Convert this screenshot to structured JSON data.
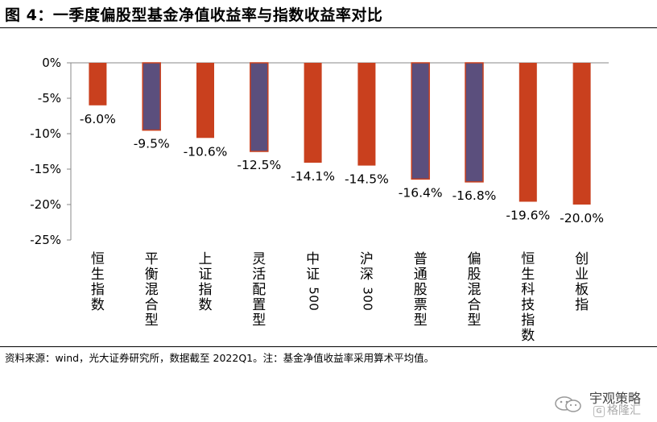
{
  "title": "图 4：一季度偏股型基金净值收益率与指数收益率对比",
  "note": "资料来源：wind，光大证券研究所，数据截至 2022Q1。注：基金净值收益率采用算术平均值。",
  "watermark": {
    "name": "宇观策略",
    "sub": "格隆汇"
  },
  "colors": {
    "index": "#C9401E",
    "fund": "#5B4F7D",
    "axis": "#888888"
  },
  "chart_data": {
    "type": "bar",
    "title": "",
    "xlabel": "",
    "ylabel": "",
    "ylim": [
      -25,
      0
    ],
    "yticks": [
      "0%",
      "-5%",
      "-10%",
      "-15%",
      "-20%",
      "-25%"
    ],
    "grid": false,
    "categories": [
      "恒生指数",
      "平衡混合型",
      "上证指数",
      "灵活配置型",
      "中证500",
      "沪深300",
      "普通股票型",
      "偏股混合型",
      "恒生科技指数",
      "创业板指"
    ],
    "values": [
      -6.0,
      -9.5,
      -10.6,
      -12.5,
      -14.1,
      -14.5,
      -16.4,
      -16.8,
      -19.6,
      -20.0
    ],
    "labels": [
      "-6.0%",
      "-9.5%",
      "-10.6%",
      "-12.5%",
      "-14.1%",
      "-14.5%",
      "-16.4%",
      "-16.8%",
      "-19.6%",
      "-20.0%"
    ],
    "bar_kind": [
      "index",
      "fund",
      "index",
      "fund",
      "index",
      "index",
      "fund",
      "fund",
      "index",
      "index"
    ]
  }
}
